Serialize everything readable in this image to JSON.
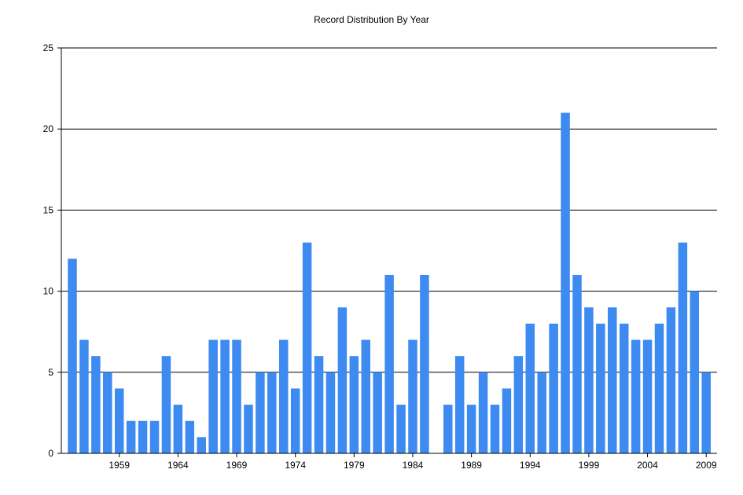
{
  "chart_data": {
    "type": "bar",
    "title": "Record Distribution By Year",
    "xlabel": "",
    "ylabel": "",
    "ylim": [
      0,
      25
    ],
    "y_ticks": [
      0,
      5,
      10,
      15,
      20,
      25
    ],
    "x_tick_labels": [
      "1959",
      "1964",
      "1969",
      "1974",
      "1979",
      "1984",
      "1989",
      "1994",
      "1999",
      "2004",
      "2009"
    ],
    "grid": "horizontal",
    "bar_color": "#3d8af0",
    "categories": [
      1955,
      1956,
      1957,
      1958,
      1959,
      1960,
      1961,
      1962,
      1963,
      1964,
      1965,
      1966,
      1967,
      1968,
      1969,
      1970,
      1971,
      1972,
      1973,
      1974,
      1975,
      1976,
      1977,
      1978,
      1979,
      1980,
      1981,
      1982,
      1983,
      1984,
      1985,
      1986,
      1987,
      1988,
      1989,
      1990,
      1991,
      1992,
      1993,
      1994,
      1995,
      1996,
      1997,
      1998,
      1999,
      2000,
      2001,
      2002,
      2003,
      2004,
      2005,
      2006,
      2007,
      2008,
      2009
    ],
    "values": [
      12,
      7,
      6,
      5,
      4,
      2,
      2,
      2,
      6,
      3,
      2,
      1,
      7,
      7,
      7,
      3,
      5,
      5,
      7,
      4,
      13,
      6,
      5,
      9,
      6,
      7,
      5,
      11,
      3,
      7,
      11,
      0,
      3,
      6,
      3,
      5,
      3,
      4,
      6,
      8,
      5,
      8,
      21,
      11,
      9,
      8,
      9,
      8,
      7,
      7,
      8,
      9,
      13,
      10,
      5
    ]
  }
}
